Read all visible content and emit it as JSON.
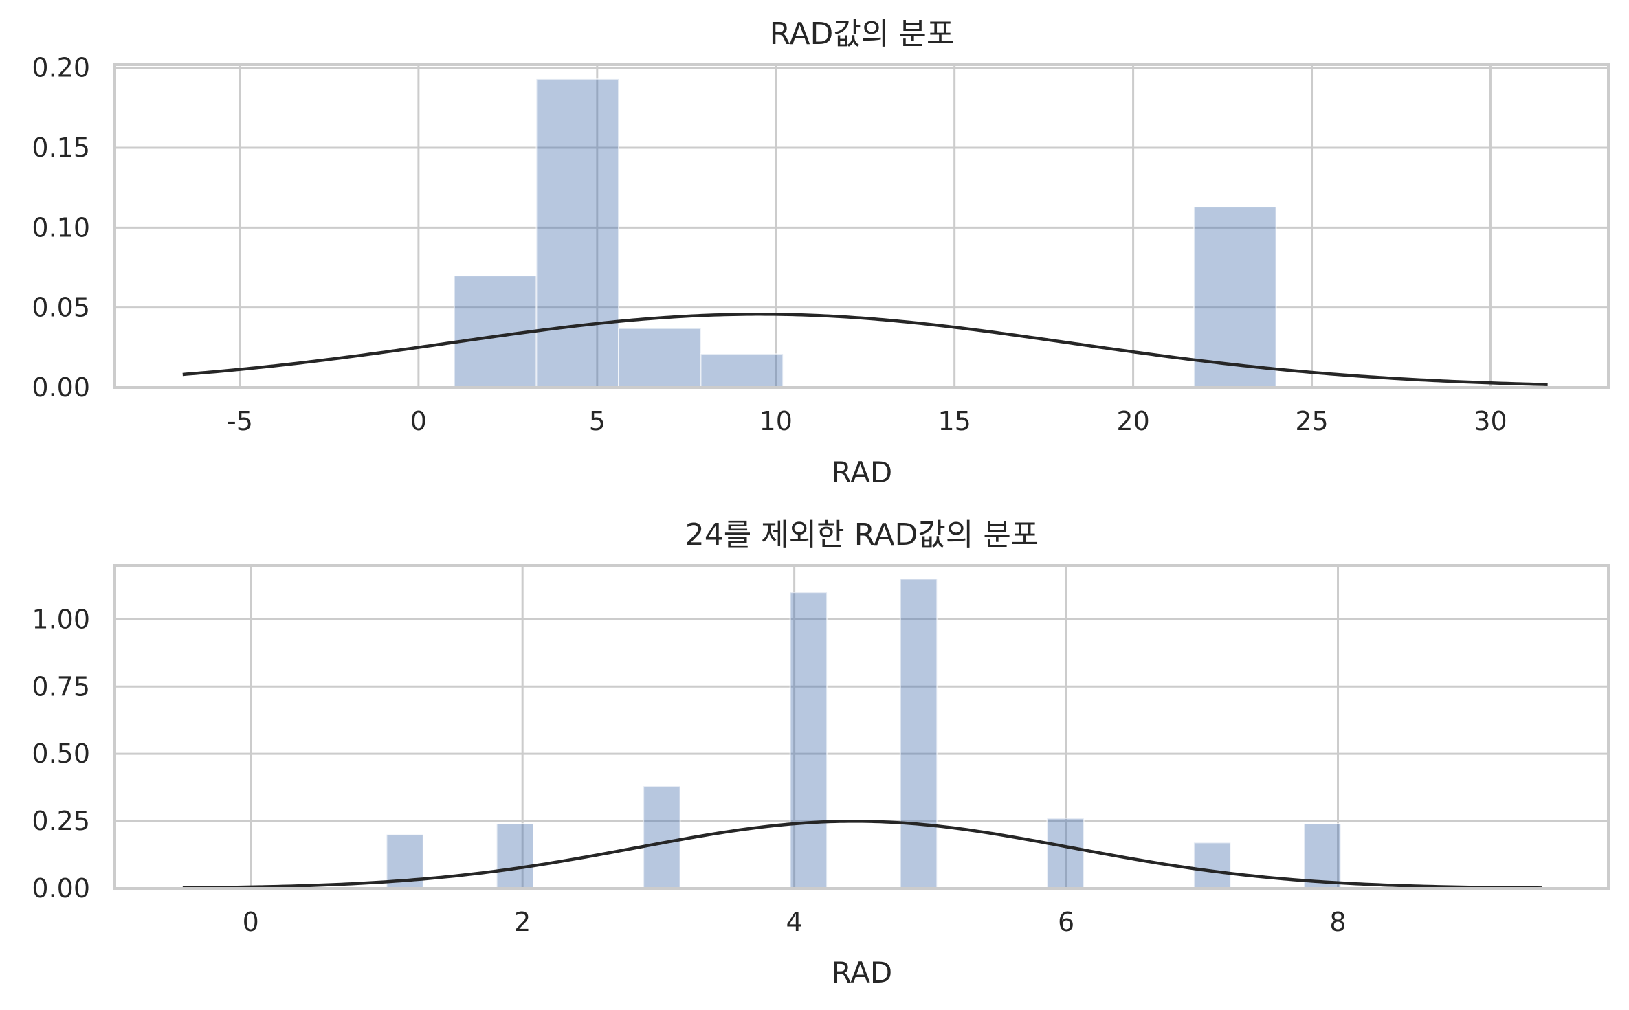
{
  "chart_data": [
    {
      "type": "bar",
      "title": "RAD값의 분포",
      "xlabel": "RAD",
      "ylabel": "",
      "xlim": [
        -8.5,
        33.3
      ],
      "ylim": [
        0,
        0.202
      ],
      "xticks": [
        -5,
        0,
        5,
        10,
        15,
        20,
        25,
        30
      ],
      "xtick_labels": [
        "-5",
        "0",
        "5",
        "10",
        "15",
        "20",
        "25",
        "30"
      ],
      "yticks": [
        0,
        0.05,
        0.1,
        0.15,
        0.2
      ],
      "ytick_labels": [
        "0.00",
        "0.05",
        "0.10",
        "0.15",
        "0.20"
      ],
      "grid": true,
      "bins": [
        {
          "x0": 1.0,
          "x1": 3.3,
          "value": 0.07
        },
        {
          "x0": 3.3,
          "x1": 5.6,
          "value": 0.193
        },
        {
          "x0": 5.6,
          "x1": 7.9,
          "value": 0.037
        },
        {
          "x0": 7.9,
          "x1": 10.2,
          "value": 0.021
        },
        {
          "x0": 10.2,
          "x1": 12.5,
          "value": 0
        },
        {
          "x0": 12.5,
          "x1": 14.8,
          "value": 0
        },
        {
          "x0": 14.8,
          "x1": 17.1,
          "value": 0
        },
        {
          "x0": 17.1,
          "x1": 19.4,
          "value": 0
        },
        {
          "x0": 19.4,
          "x1": 21.7,
          "value": 0
        },
        {
          "x0": 21.7,
          "x1": 24.0,
          "value": 0.113
        }
      ],
      "fit_curve": {
        "distribution": "normal",
        "mean": 9.55,
        "std": 8.7,
        "x_range": [
          -6.6,
          31.6
        ]
      }
    },
    {
      "type": "bar",
      "title": "24를 제외한 RAD값의 분포",
      "xlabel": "RAD",
      "ylabel": "",
      "xlim": [
        -1.0,
        9.99
      ],
      "ylim": [
        0,
        1.2
      ],
      "xticks": [
        0,
        2,
        4,
        6,
        8
      ],
      "xtick_labels": [
        "0",
        "2",
        "4",
        "6",
        "8"
      ],
      "yticks": [
        0,
        0.25,
        0.5,
        0.75,
        1.0
      ],
      "ytick_labels": [
        "0.00",
        "0.25",
        "0.50",
        "0.75",
        "1.00"
      ],
      "grid": true,
      "bins": [
        {
          "x0": 1.0,
          "x1": 1.27,
          "value": 0.2
        },
        {
          "x0": 1.81,
          "x1": 2.08,
          "value": 0.24
        },
        {
          "x0": 2.89,
          "x1": 3.16,
          "value": 0.38
        },
        {
          "x0": 3.97,
          "x1": 4.24,
          "value": 1.1
        },
        {
          "x0": 4.78,
          "x1": 5.05,
          "value": 1.15
        },
        {
          "x0": 5.86,
          "x1": 6.13,
          "value": 0.26
        },
        {
          "x0": 6.94,
          "x1": 7.21,
          "value": 0.17
        },
        {
          "x0": 7.75,
          "x1": 8.02,
          "value": 0.24
        }
      ],
      "fit_curve": {
        "distribution": "normal",
        "mean": 4.44,
        "std": 1.6,
        "x_range": [
          -0.5,
          9.5
        ]
      }
    }
  ]
}
